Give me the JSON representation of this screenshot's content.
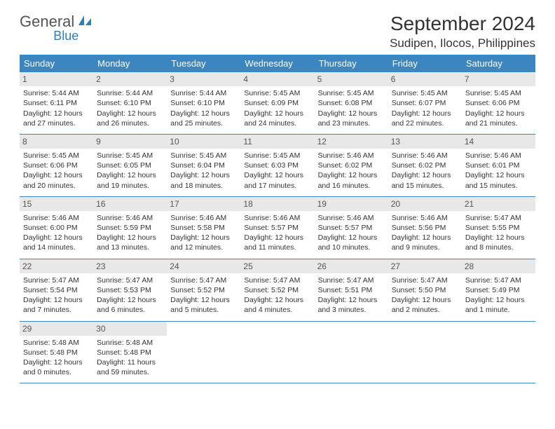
{
  "logo": {
    "text1": "General",
    "text2": "Blue",
    "color1": "#555555",
    "color2": "#2e7fb8"
  },
  "title": "September 2024",
  "location": "Sudipen, Ilocos, Philippines",
  "header_bg": "#3b85c0",
  "header_fg": "#ffffff",
  "daynum_bg": "#e8e8e8",
  "border_color": "#3b85c0",
  "weekdays": [
    "Sunday",
    "Monday",
    "Tuesday",
    "Wednesday",
    "Thursday",
    "Friday",
    "Saturday"
  ],
  "days": [
    {
      "n": "1",
      "sunrise": "5:44 AM",
      "sunset": "6:11 PM",
      "dl1": "Daylight: 12 hours",
      "dl2": "and 27 minutes."
    },
    {
      "n": "2",
      "sunrise": "5:44 AM",
      "sunset": "6:10 PM",
      "dl1": "Daylight: 12 hours",
      "dl2": "and 26 minutes."
    },
    {
      "n": "3",
      "sunrise": "5:44 AM",
      "sunset": "6:10 PM",
      "dl1": "Daylight: 12 hours",
      "dl2": "and 25 minutes."
    },
    {
      "n": "4",
      "sunrise": "5:45 AM",
      "sunset": "6:09 PM",
      "dl1": "Daylight: 12 hours",
      "dl2": "and 24 minutes."
    },
    {
      "n": "5",
      "sunrise": "5:45 AM",
      "sunset": "6:08 PM",
      "dl1": "Daylight: 12 hours",
      "dl2": "and 23 minutes."
    },
    {
      "n": "6",
      "sunrise": "5:45 AM",
      "sunset": "6:07 PM",
      "dl1": "Daylight: 12 hours",
      "dl2": "and 22 minutes."
    },
    {
      "n": "7",
      "sunrise": "5:45 AM",
      "sunset": "6:06 PM",
      "dl1": "Daylight: 12 hours",
      "dl2": "and 21 minutes."
    },
    {
      "n": "8",
      "sunrise": "5:45 AM",
      "sunset": "6:06 PM",
      "dl1": "Daylight: 12 hours",
      "dl2": "and 20 minutes."
    },
    {
      "n": "9",
      "sunrise": "5:45 AM",
      "sunset": "6:05 PM",
      "dl1": "Daylight: 12 hours",
      "dl2": "and 19 minutes."
    },
    {
      "n": "10",
      "sunrise": "5:45 AM",
      "sunset": "6:04 PM",
      "dl1": "Daylight: 12 hours",
      "dl2": "and 18 minutes."
    },
    {
      "n": "11",
      "sunrise": "5:45 AM",
      "sunset": "6:03 PM",
      "dl1": "Daylight: 12 hours",
      "dl2": "and 17 minutes."
    },
    {
      "n": "12",
      "sunrise": "5:46 AM",
      "sunset": "6:02 PM",
      "dl1": "Daylight: 12 hours",
      "dl2": "and 16 minutes."
    },
    {
      "n": "13",
      "sunrise": "5:46 AM",
      "sunset": "6:02 PM",
      "dl1": "Daylight: 12 hours",
      "dl2": "and 15 minutes."
    },
    {
      "n": "14",
      "sunrise": "5:46 AM",
      "sunset": "6:01 PM",
      "dl1": "Daylight: 12 hours",
      "dl2": "and 15 minutes."
    },
    {
      "n": "15",
      "sunrise": "5:46 AM",
      "sunset": "6:00 PM",
      "dl1": "Daylight: 12 hours",
      "dl2": "and 14 minutes."
    },
    {
      "n": "16",
      "sunrise": "5:46 AM",
      "sunset": "5:59 PM",
      "dl1": "Daylight: 12 hours",
      "dl2": "and 13 minutes."
    },
    {
      "n": "17",
      "sunrise": "5:46 AM",
      "sunset": "5:58 PM",
      "dl1": "Daylight: 12 hours",
      "dl2": "and 12 minutes."
    },
    {
      "n": "18",
      "sunrise": "5:46 AM",
      "sunset": "5:57 PM",
      "dl1": "Daylight: 12 hours",
      "dl2": "and 11 minutes."
    },
    {
      "n": "19",
      "sunrise": "5:46 AM",
      "sunset": "5:57 PM",
      "dl1": "Daylight: 12 hours",
      "dl2": "and 10 minutes."
    },
    {
      "n": "20",
      "sunrise": "5:46 AM",
      "sunset": "5:56 PM",
      "dl1": "Daylight: 12 hours",
      "dl2": "and 9 minutes."
    },
    {
      "n": "21",
      "sunrise": "5:47 AM",
      "sunset": "5:55 PM",
      "dl1": "Daylight: 12 hours",
      "dl2": "and 8 minutes."
    },
    {
      "n": "22",
      "sunrise": "5:47 AM",
      "sunset": "5:54 PM",
      "dl1": "Daylight: 12 hours",
      "dl2": "and 7 minutes."
    },
    {
      "n": "23",
      "sunrise": "5:47 AM",
      "sunset": "5:53 PM",
      "dl1": "Daylight: 12 hours",
      "dl2": "and 6 minutes."
    },
    {
      "n": "24",
      "sunrise": "5:47 AM",
      "sunset": "5:52 PM",
      "dl1": "Daylight: 12 hours",
      "dl2": "and 5 minutes."
    },
    {
      "n": "25",
      "sunrise": "5:47 AM",
      "sunset": "5:52 PM",
      "dl1": "Daylight: 12 hours",
      "dl2": "and 4 minutes."
    },
    {
      "n": "26",
      "sunrise": "5:47 AM",
      "sunset": "5:51 PM",
      "dl1": "Daylight: 12 hours",
      "dl2": "and 3 minutes."
    },
    {
      "n": "27",
      "sunrise": "5:47 AM",
      "sunset": "5:50 PM",
      "dl1": "Daylight: 12 hours",
      "dl2": "and 2 minutes."
    },
    {
      "n": "28",
      "sunrise": "5:47 AM",
      "sunset": "5:49 PM",
      "dl1": "Daylight: 12 hours",
      "dl2": "and 1 minute."
    },
    {
      "n": "29",
      "sunrise": "5:48 AM",
      "sunset": "5:48 PM",
      "dl1": "Daylight: 12 hours",
      "dl2": "and 0 minutes."
    },
    {
      "n": "30",
      "sunrise": "5:48 AM",
      "sunset": "5:48 PM",
      "dl1": "Daylight: 11 hours",
      "dl2": "and 59 minutes."
    }
  ],
  "labels": {
    "sunrise": "Sunrise:",
    "sunset": "Sunset:"
  }
}
